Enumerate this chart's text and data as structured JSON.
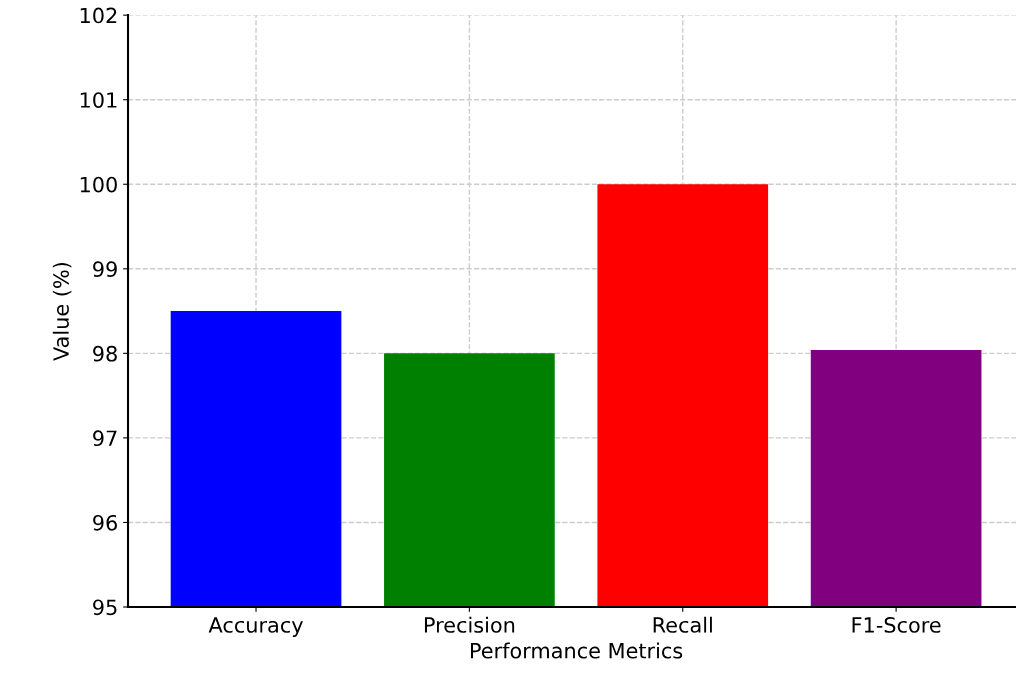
{
  "chart_data": {
    "type": "bar",
    "xlabel": "Performance Metrics",
    "ylabel": "Value (%)",
    "categories": [
      "Accuracy",
      "Precision",
      "Recall",
      "F1-Score"
    ],
    "values": [
      98.5,
      98.0,
      100.0,
      98.04
    ],
    "colors": [
      "#0000ff",
      "#008000",
      "#ff0000",
      "#800080"
    ],
    "ylim": [
      95,
      102
    ],
    "yticks": [
      95,
      96,
      97,
      98,
      99,
      100,
      101,
      102
    ],
    "grid": true
  }
}
